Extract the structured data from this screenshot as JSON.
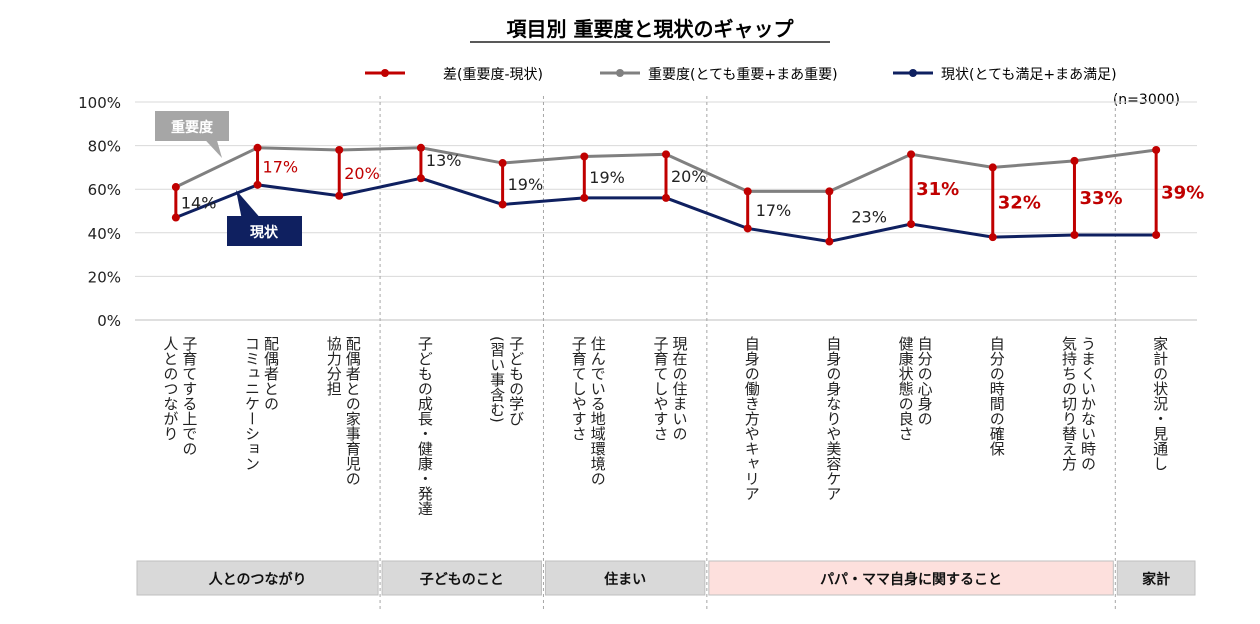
{
  "chart_data": {
    "type": "line",
    "title": "項目別 重要度と現状のギャップ",
    "sample_note": "(n=3000)",
    "ylim": [
      0,
      100
    ],
    "yticks": [
      "0%",
      "20%",
      "40%",
      "60%",
      "80%",
      "100%"
    ],
    "grid": true,
    "legend_position": "top-right",
    "categories": [
      [
        "子育てする上での",
        "人とのつながり"
      ],
      [
        "配偶者との",
        "コミュニケーション"
      ],
      [
        "配偶者との家事育児の",
        "協力分担"
      ],
      [
        "子どもの成長・健康・発達"
      ],
      [
        "子どもの学び",
        "(習い事含む)"
      ],
      [
        "住んでいる地域環境の",
        "子育てしやすさ"
      ],
      [
        "現在の住まいの",
        "子育てしやすさ"
      ],
      [
        "自身の働き方やキャリア"
      ],
      [
        "自身の身なりや美容ケア"
      ],
      [
        "自分の心身の",
        "健康状態の良さ"
      ],
      [
        "自分の時間の確保"
      ],
      [
        "うまくいかない時の",
        "気持ちの切り替え方"
      ],
      [
        "家計の状況・見通し"
      ]
    ],
    "series": [
      {
        "name": "差(重要度-現状)",
        "color": "#c00000",
        "values": [
          14,
          17,
          20,
          13,
          19,
          19,
          20,
          17,
          23,
          31,
          32,
          33,
          39
        ],
        "labels": [
          "14%",
          "17%",
          "20%",
          "13%",
          "19%",
          "19%",
          "20%",
          "17%",
          "23%",
          "31%",
          "32%",
          "33%",
          "39%"
        ]
      },
      {
        "name": "重要度(とても重要+まあ重要)",
        "color": "#808080",
        "values": [
          61,
          79,
          78,
          79,
          72,
          75,
          76,
          59,
          59,
          76,
          70,
          73,
          78
        ]
      },
      {
        "name": "現状(とても満足+まあ満足)",
        "color": "#0f2060",
        "values": [
          47,
          62,
          57,
          65,
          53,
          56,
          56,
          42,
          36,
          44,
          38,
          39,
          39
        ]
      }
    ],
    "callouts": {
      "importance": "重要度",
      "current": "現状"
    },
    "groups": [
      {
        "label": "人とのつながり",
        "span": [
          0,
          2
        ],
        "color": "#d9d9d9"
      },
      {
        "label": "子どものこと",
        "span": [
          3,
          4
        ],
        "color": "#d9d9d9"
      },
      {
        "label": "住まい",
        "span": [
          5,
          6
        ],
        "color": "#d9d9d9"
      },
      {
        "label": "パパ・ママ自身に関すること",
        "span": [
          7,
          11
        ],
        "color": "#fde0dd"
      },
      {
        "label": "家計",
        "span": [
          12,
          12
        ],
        "color": "#d9d9d9"
      }
    ]
  }
}
